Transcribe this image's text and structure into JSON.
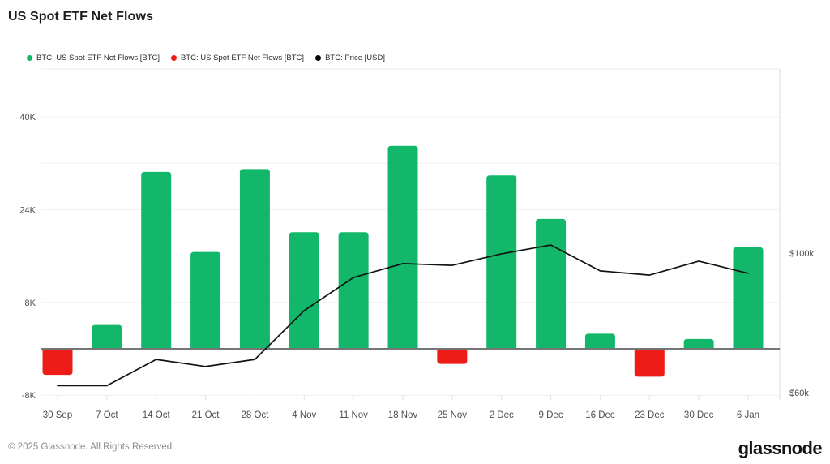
{
  "header": {
    "title": "US Spot ETF Net Flows"
  },
  "legend": {
    "items": [
      {
        "label": "BTC: US Spot ETF Net Flows [BTC]",
        "color": "#12b76a"
      },
      {
        "label": "BTC: US Spot ETF Net Flows [BTC]",
        "color": "#ee1c16"
      },
      {
        "label": "BTC: Price [USD]",
        "color": "#000000"
      }
    ]
  },
  "chart_data": {
    "type": "combo",
    "title": "US Spot ETF Net Flows",
    "grid": true,
    "legend_position": "top",
    "categories": [
      "30 Sep",
      "7 Oct",
      "14 Oct",
      "21 Oct",
      "28 Oct",
      "4 Nov",
      "11 Nov",
      "18 Nov",
      "25 Nov",
      "2 Dec",
      "9 Dec",
      "16 Dec",
      "23 Dec",
      "30 Dec",
      "6 Jan"
    ],
    "series": [
      {
        "name": "BTC: US Spot ETF Net Flows [BTC]",
        "type": "bar",
        "unit": "BTC",
        "color_positive": "#12b76a",
        "color_negative": "#ee1c16",
        "values": [
          -4500,
          4100,
          30500,
          16700,
          31000,
          20100,
          20100,
          35000,
          -2600,
          29900,
          22400,
          2600,
          -4800,
          1700,
          17500
        ]
      },
      {
        "name": "BTC: Price [USD]",
        "type": "line",
        "unit": "USD",
        "color": "#121212",
        "values": [
          62000,
          62000,
          69500,
          67500,
          69500,
          83500,
          93000,
          97000,
          96500,
          99800,
          102300,
          94900,
          93700,
          97700,
          94200
        ]
      }
    ],
    "left_axis": {
      "ticks": [
        "40K",
        "24K",
        "8K",
        "-8K"
      ],
      "tick_values": [
        40000,
        24000,
        8000,
        -8000
      ],
      "gridline_values": [
        40000,
        32000,
        24000,
        16000,
        8000,
        -8000
      ],
      "range": [
        -9000,
        42000
      ]
    },
    "right_axis": {
      "ticks": [
        "$100k",
        "$60k"
      ],
      "tick_values": [
        100000,
        60000
      ],
      "range": [
        57000,
        130000
      ]
    },
    "colors": {
      "positive": "#12b76a",
      "negative": "#ee1c16",
      "price_line": "#121212",
      "zero_line": "#757575",
      "gridline": "#f0f0f0",
      "border": "#e7e7e7",
      "axis_text": "#4d4d4d"
    }
  },
  "footer": {
    "copyright": "© 2025 Glassnode. All Rights Reserved.",
    "brand": "glassnode"
  }
}
